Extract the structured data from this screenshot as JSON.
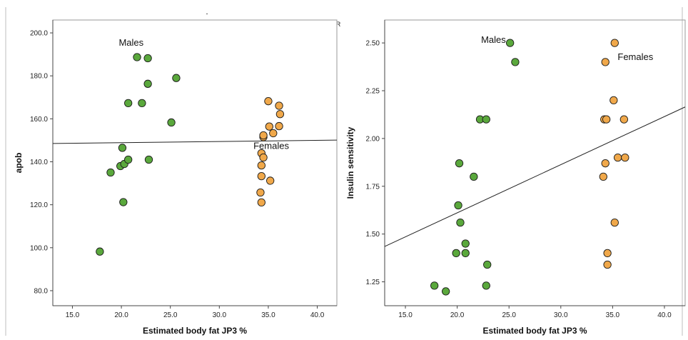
{
  "colors": {
    "males": "#5aa83c",
    "females": "#f0a84a",
    "marker_stroke": "#1b1b1b",
    "fit_line": "#222222",
    "axis": "#444444",
    "panel_border": "#9a9a9a"
  },
  "stray_marks": {
    "top_dash": "-",
    "right_mark": "R"
  },
  "chart_data": [
    {
      "type": "scatter",
      "xlabel": "Estimated body fat JP3 %",
      "ylabel": "apob",
      "xlim": [
        13.0,
        42.0
      ],
      "ylim": [
        73.0,
        206.0
      ],
      "xticks": [
        "15.0",
        "20.0",
        "25.0",
        "30.0",
        "35.0",
        "40.0"
      ],
      "yticks": [
        "80.0",
        "100.0",
        "120.0",
        "140.0",
        "160.0",
        "180.0",
        "200.0"
      ],
      "group_labels": [
        {
          "text": "Males",
          "x": 21.0,
          "y": 194.0
        },
        {
          "text": "Females",
          "x": 35.3,
          "y": 146.0
        }
      ],
      "series": [
        {
          "name": "Males",
          "points": [
            [
              17.8,
              98.2
            ],
            [
              18.9,
              135.0
            ],
            [
              19.9,
              138.0
            ],
            [
              20.1,
              146.5
            ],
            [
              20.3,
              139.0
            ],
            [
              20.2,
              121.2
            ],
            [
              20.7,
              141.0
            ],
            [
              20.7,
              167.3
            ],
            [
              21.6,
              188.7
            ],
            [
              22.1,
              167.3
            ],
            [
              22.7,
              188.2
            ],
            [
              22.7,
              176.3
            ],
            [
              22.8,
              141.0
            ],
            [
              25.1,
              158.3
            ],
            [
              25.6,
              179.0
            ]
          ]
        },
        {
          "name": "Females",
          "points": [
            [
              34.2,
              125.7
            ],
            [
              34.3,
              138.3
            ],
            [
              34.3,
              133.3
            ],
            [
              34.3,
              144.0
            ],
            [
              34.3,
              121.1
            ],
            [
              34.5,
              151.5
            ],
            [
              34.5,
              152.3
            ],
            [
              34.5,
              142.0
            ],
            [
              35.0,
              168.2
            ],
            [
              35.1,
              156.4
            ],
            [
              35.2,
              131.2
            ],
            [
              35.5,
              153.3
            ],
            [
              36.1,
              166.1
            ],
            [
              36.2,
              162.2
            ],
            [
              36.1,
              156.6
            ]
          ]
        }
      ],
      "fit_line": {
        "x": [
          13.0,
          42.0
        ],
        "y": [
          148.5,
          150.1
        ]
      }
    },
    {
      "type": "scatter",
      "xlabel": "Estimated body fat JP3 %",
      "ylabel": "Insulin sensitivity",
      "xlim": [
        13.0,
        42.0
      ],
      "ylim": [
        1.125,
        2.62
      ],
      "xticks": [
        "15.0",
        "20.0",
        "25.0",
        "30.0",
        "35.0",
        "40.0"
      ],
      "yticks": [
        "1.25",
        "1.50",
        "1.75",
        "2.00",
        "2.25",
        "2.50"
      ],
      "group_labels": [
        {
          "text": "Males",
          "x": 23.5,
          "y": 2.5
        },
        {
          "text": "Females",
          "x": 37.2,
          "y": 2.41
        }
      ],
      "series": [
        {
          "name": "Males",
          "points": [
            [
              17.8,
              1.23
            ],
            [
              18.9,
              1.2
            ],
            [
              19.9,
              1.4
            ],
            [
              20.1,
              1.65
            ],
            [
              20.2,
              1.87
            ],
            [
              20.3,
              1.56
            ],
            [
              20.8,
              1.45
            ],
            [
              20.8,
              1.4
            ],
            [
              21.6,
              1.8
            ],
            [
              22.2,
              2.1
            ],
            [
              22.8,
              2.1
            ],
            [
              22.8,
              1.23
            ],
            [
              22.9,
              1.34
            ],
            [
              25.1,
              2.5
            ],
            [
              25.6,
              2.4
            ]
          ]
        },
        {
          "name": "Females",
          "points": [
            [
              34.1,
              1.8
            ],
            [
              34.2,
              2.1
            ],
            [
              34.3,
              1.87
            ],
            [
              34.3,
              2.4
            ],
            [
              34.4,
              2.1
            ],
            [
              34.5,
              1.4
            ],
            [
              34.5,
              1.34
            ],
            [
              35.1,
              2.2
            ],
            [
              35.2,
              2.5
            ],
            [
              35.2,
              1.56
            ],
            [
              35.5,
              1.9
            ],
            [
              36.1,
              2.1
            ],
            [
              36.2,
              1.9
            ]
          ]
        }
      ],
      "fit_line": {
        "x": [
          13.0,
          42.0
        ],
        "y": [
          1.435,
          2.165
        ]
      }
    }
  ]
}
